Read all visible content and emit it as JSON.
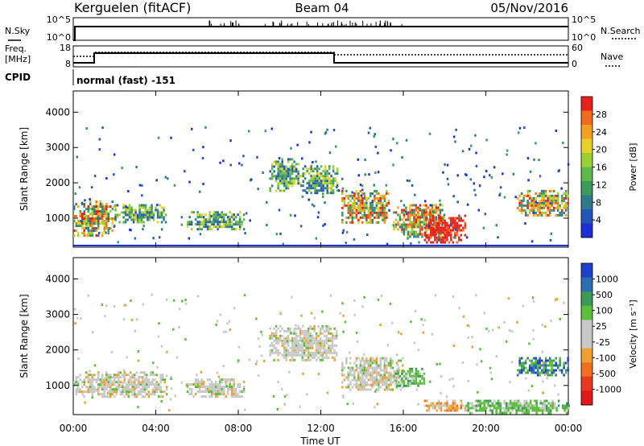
{
  "header": {
    "station": "Kerguelen (fitACF)",
    "beam": "Beam 04",
    "date": "05/Nov/2016"
  },
  "top_panels": {
    "nsky": {
      "label": "N.Sky",
      "tick_hi": "10^5",
      "tick_lo": "10^0",
      "right_tick_hi": "10^5",
      "right_tick_lo": "10^0",
      "right_label": "N.Search"
    },
    "freq": {
      "label_line1": "Freq.",
      "label_line2": "[MHz]",
      "tick_hi": "18",
      "tick_lo": "8",
      "right_tick_hi": "60",
      "right_tick_lo": "0",
      "right_label": "Nave"
    },
    "cpid": {
      "label": "CPID",
      "value": "normal (fast) -151"
    }
  },
  "chart_data": [
    {
      "type": "heatmap",
      "panel": "power",
      "ylabel": "Slant Range [km]",
      "yticks": [
        "1000",
        "2000",
        "3000",
        "4000"
      ],
      "ylim": [
        180,
        4600
      ],
      "xlim_hours": [
        0,
        24
      ],
      "colorbar": {
        "label": "Power [dB]",
        "ticks": [
          "4",
          "8",
          "12",
          "16",
          "20",
          "24",
          "28"
        ],
        "colors": [
          "#1f2fd8",
          "#2156b8",
          "#2f7a8a",
          "#3c9a5a",
          "#5fb84a",
          "#9bd035",
          "#e8d02a",
          "#f2a022",
          "#f26a1c",
          "#e8201c"
        ]
      },
      "echo_regions": [
        {
          "t0": 0.0,
          "t1": 2.0,
          "r0": 500,
          "r1": 1500,
          "level": "strong"
        },
        {
          "t0": 2.0,
          "t1": 4.5,
          "r0": 900,
          "r1": 1400,
          "level": "medium"
        },
        {
          "t0": 5.5,
          "t1": 8.3,
          "r0": 700,
          "r1": 1200,
          "level": "medium"
        },
        {
          "t0": 9.5,
          "t1": 11.0,
          "r0": 1800,
          "r1": 2700,
          "level": "medium"
        },
        {
          "t0": 11.0,
          "t1": 12.8,
          "r0": 1700,
          "r1": 2500,
          "level": "medium"
        },
        {
          "t0": 13.0,
          "t1": 15.3,
          "r0": 900,
          "r1": 1800,
          "level": "strong"
        },
        {
          "t0": 15.5,
          "t1": 18.0,
          "r0": 500,
          "r1": 1400,
          "level": "strong"
        },
        {
          "t0": 17.0,
          "t1": 19.0,
          "r0": 300,
          "r1": 1100,
          "level": "very-strong"
        },
        {
          "t0": 21.5,
          "t1": 24.0,
          "r0": 1100,
          "r1": 1800,
          "level": "strong"
        }
      ]
    },
    {
      "type": "heatmap",
      "panel": "velocity",
      "ylabel": "Slant Range [km]",
      "yticks": [
        "1000",
        "2000",
        "3000",
        "4000"
      ],
      "ylim": [
        180,
        4600
      ],
      "xlim_hours": [
        0,
        24
      ],
      "colorbar": {
        "label": "Velocity [m s⁻¹]",
        "ticks": [
          "1000",
          "500",
          "100",
          "25",
          "-25",
          "-100",
          "-500",
          "-1000"
        ],
        "colors": [
          "#1f3fc8",
          "#2a6fb0",
          "#3b9a55",
          "#5cbf3a",
          "#c8c8c8",
          "#c8c8c8",
          "#f0a030",
          "#f07020",
          "#e83820",
          "#e01818"
        ]
      },
      "echo_regions": [
        {
          "t0": 0.0,
          "t1": 4.5,
          "r0": 700,
          "r1": 1400,
          "value": "near-zero"
        },
        {
          "t0": 5.5,
          "t1": 8.3,
          "r0": 700,
          "r1": 1200,
          "value": "near-zero"
        },
        {
          "t0": 9.5,
          "t1": 12.8,
          "r0": 1700,
          "r1": 2700,
          "value": "near-zero"
        },
        {
          "t0": 13.0,
          "t1": 16.0,
          "r0": 900,
          "r1": 1800,
          "value": "near-zero"
        },
        {
          "t0": 15.5,
          "t1": 17.0,
          "r0": 1000,
          "r1": 1500,
          "value": "positive"
        },
        {
          "t0": 17.0,
          "t1": 19.0,
          "r0": 300,
          "r1": 600,
          "value": "negative"
        },
        {
          "t0": 19.0,
          "t1": 24.0,
          "r0": 250,
          "r1": 600,
          "value": "positive"
        },
        {
          "t0": 21.5,
          "t1": 24.0,
          "r0": 1300,
          "r1": 1800,
          "value": "strong-positive"
        }
      ]
    }
  ],
  "xaxis": {
    "ticks": [
      "00:00",
      "04:00",
      "08:00",
      "12:00",
      "16:00",
      "20:00",
      "00:00"
    ],
    "label": "Time UT"
  }
}
